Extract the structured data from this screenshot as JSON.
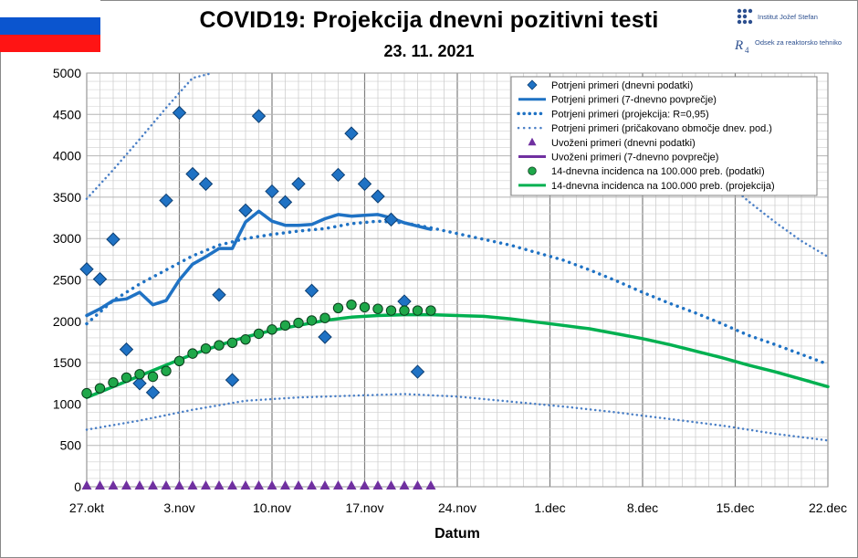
{
  "header": {
    "title": "COVID19: Projekcija dnevni pozitivni testi",
    "date": "23. 11. 2021",
    "org_name": "Institut Jožef Stefan",
    "org_dept": "Odsek za reaktorsko tehniko"
  },
  "colors": {
    "blue": "#1f72c4",
    "diamond": "#1f72c4",
    "dotblue": "#4a7fc6",
    "purple": "#7030a0",
    "green": "#00b050",
    "greenDot": "#1fa84a",
    "gridMinor": "#cfcfcf",
    "gridMajor": "#808080"
  },
  "chart_data": {
    "type": "line",
    "title": "COVID19: Projekcija dnevni pozitivni testi",
    "xlabel": "Datum",
    "ylabel": "",
    "ylim": [
      0,
      5000
    ],
    "xlim": [
      0,
      56
    ],
    "yticks": [
      0,
      500,
      1000,
      1500,
      2000,
      2500,
      3000,
      3500,
      4000,
      4500,
      5000
    ],
    "xticks": [
      {
        "x": 0,
        "label": "27.okt"
      },
      {
        "x": 7,
        "label": "3.nov"
      },
      {
        "x": 14,
        "label": "10.nov"
      },
      {
        "x": 21,
        "label": "17.nov"
      },
      {
        "x": 28,
        "label": "24.nov"
      },
      {
        "x": 35,
        "label": "1.dec"
      },
      {
        "x": 42,
        "label": "8.dec"
      },
      {
        "x": 49,
        "label": "15.dec"
      },
      {
        "x": 56,
        "label": "22.dec"
      }
    ],
    "legend_position": "top-right",
    "series": [
      {
        "key": "daily",
        "name": "Potrjeni primeri (dnevni podatki)",
        "kind": "diamond",
        "x": [
          0,
          1,
          2,
          3,
          4,
          5,
          6,
          7,
          8,
          9,
          10,
          11,
          12,
          13,
          14,
          15,
          16,
          17,
          18,
          19,
          20,
          21,
          22,
          23,
          24,
          25
        ],
        "values": [
          2630,
          2510,
          2990,
          1660,
          1250,
          1140,
          3460,
          4520,
          3780,
          3660,
          2320,
          1290,
          3340,
          4480,
          3570,
          3440,
          3660,
          2370,
          1810,
          3770,
          4270,
          3660,
          3510,
          3230,
          2240,
          1390
        ]
      },
      {
        "key": "avg7",
        "name": "Potrjeni primeri (7-dnevno povprečje)",
        "kind": "line",
        "x": [
          0,
          1,
          2,
          3,
          4,
          5,
          6,
          7,
          8,
          9,
          10,
          11,
          12,
          13,
          14,
          15,
          16,
          17,
          18,
          19,
          20,
          21,
          22,
          23,
          24,
          25,
          26
        ],
        "values": [
          2070,
          2150,
          2250,
          2270,
          2350,
          2200,
          2250,
          2500,
          2690,
          2780,
          2880,
          2880,
          3200,
          3330,
          3210,
          3160,
          3160,
          3170,
          3240,
          3290,
          3270,
          3280,
          3290,
          3250,
          3190,
          3150,
          3110
        ]
      },
      {
        "key": "proj",
        "name": "Potrjeni primeri (projekcija: R=0,95)",
        "kind": "dotline",
        "x": [
          0,
          2,
          4,
          6,
          8,
          10,
          12,
          14,
          16,
          18,
          20,
          22,
          24,
          26,
          28,
          30,
          32,
          34,
          36,
          38,
          40,
          42,
          44,
          46,
          48,
          50,
          52,
          54,
          56
        ],
        "values": [
          1970,
          2250,
          2450,
          2620,
          2790,
          2920,
          3000,
          3050,
          3090,
          3120,
          3180,
          3210,
          3190,
          3130,
          3060,
          2990,
          2920,
          2830,
          2740,
          2620,
          2490,
          2350,
          2220,
          2100,
          1970,
          1830,
          1720,
          1600,
          1480
        ]
      },
      {
        "key": "rangeUpper",
        "name": "Potrjeni primeri (pričakovano območje dnev. pod.)",
        "kind": "dotline",
        "x": [
          0,
          2,
          4,
          6,
          8,
          9.5
        ],
        "values": [
          3480,
          3830,
          4200,
          4580,
          4940,
          5000
        ]
      },
      {
        "key": "rangeUpper2",
        "name": "",
        "kind": "dotline",
        "x": [
          48.5,
          50,
          52,
          54,
          56
        ],
        "values": [
          3660,
          3450,
          3200,
          2970,
          2780
        ]
      },
      {
        "key": "rangeLower",
        "name": "",
        "kind": "dotline",
        "x": [
          0,
          4,
          8,
          12,
          16,
          20,
          24,
          28,
          32,
          36,
          40,
          44,
          48,
          52,
          56
        ],
        "values": [
          690,
          800,
          930,
          1040,
          1080,
          1100,
          1120,
          1090,
          1030,
          970,
          900,
          820,
          740,
          640,
          560
        ]
      },
      {
        "key": "imported",
        "name": "Uvoženi primeri (dnevni podatki)",
        "kind": "triangle",
        "x": [
          0,
          1,
          2,
          3,
          4,
          5,
          6,
          7,
          8,
          9,
          10,
          11,
          12,
          13,
          14,
          15,
          16,
          17,
          18,
          19,
          20,
          21,
          22,
          23,
          24,
          25,
          26
        ],
        "values": [
          0,
          0,
          0,
          0,
          0,
          0,
          0,
          0,
          0,
          0,
          0,
          0,
          0,
          0,
          0,
          0,
          0,
          0,
          0,
          0,
          0,
          0,
          0,
          0,
          0,
          0,
          0
        ]
      },
      {
        "key": "imported7",
        "name": "Uvoženi primeri (7-dnevno povprečje)",
        "kind": "line",
        "x": [],
        "values": []
      },
      {
        "key": "incid",
        "name": "14-dnevna incidenca na 100.000 preb. (podatki)",
        "kind": "circle",
        "x": [
          0,
          1,
          2,
          3,
          4,
          5,
          6,
          7,
          8,
          9,
          10,
          11,
          12,
          13,
          14,
          15,
          16,
          17,
          18,
          19,
          20,
          21,
          22,
          23,
          24,
          25,
          26
        ],
        "values": [
          1130,
          1190,
          1260,
          1320,
          1360,
          1330,
          1400,
          1520,
          1610,
          1670,
          1710,
          1740,
          1780,
          1850,
          1900,
          1950,
          1980,
          2010,
          2040,
          2160,
          2200,
          2170,
          2150,
          2130,
          2130,
          2130,
          2130
        ]
      },
      {
        "key": "incidProj",
        "name": "14-dnevna incidenca na 100.000 preb. (projekcija)",
        "kind": "line",
        "x": [
          0,
          2,
          4,
          6,
          8,
          10,
          12,
          14,
          16,
          18,
          20,
          22,
          24,
          26,
          28,
          30,
          32,
          34,
          36,
          38,
          40,
          42,
          44,
          46,
          48,
          50,
          52,
          54,
          56
        ],
        "values": [
          1080,
          1210,
          1340,
          1470,
          1600,
          1710,
          1810,
          1890,
          1950,
          2010,
          2050,
          2070,
          2080,
          2080,
          2070,
          2060,
          2030,
          1990,
          1950,
          1910,
          1850,
          1790,
          1720,
          1640,
          1560,
          1470,
          1390,
          1300,
          1210
        ]
      }
    ]
  }
}
